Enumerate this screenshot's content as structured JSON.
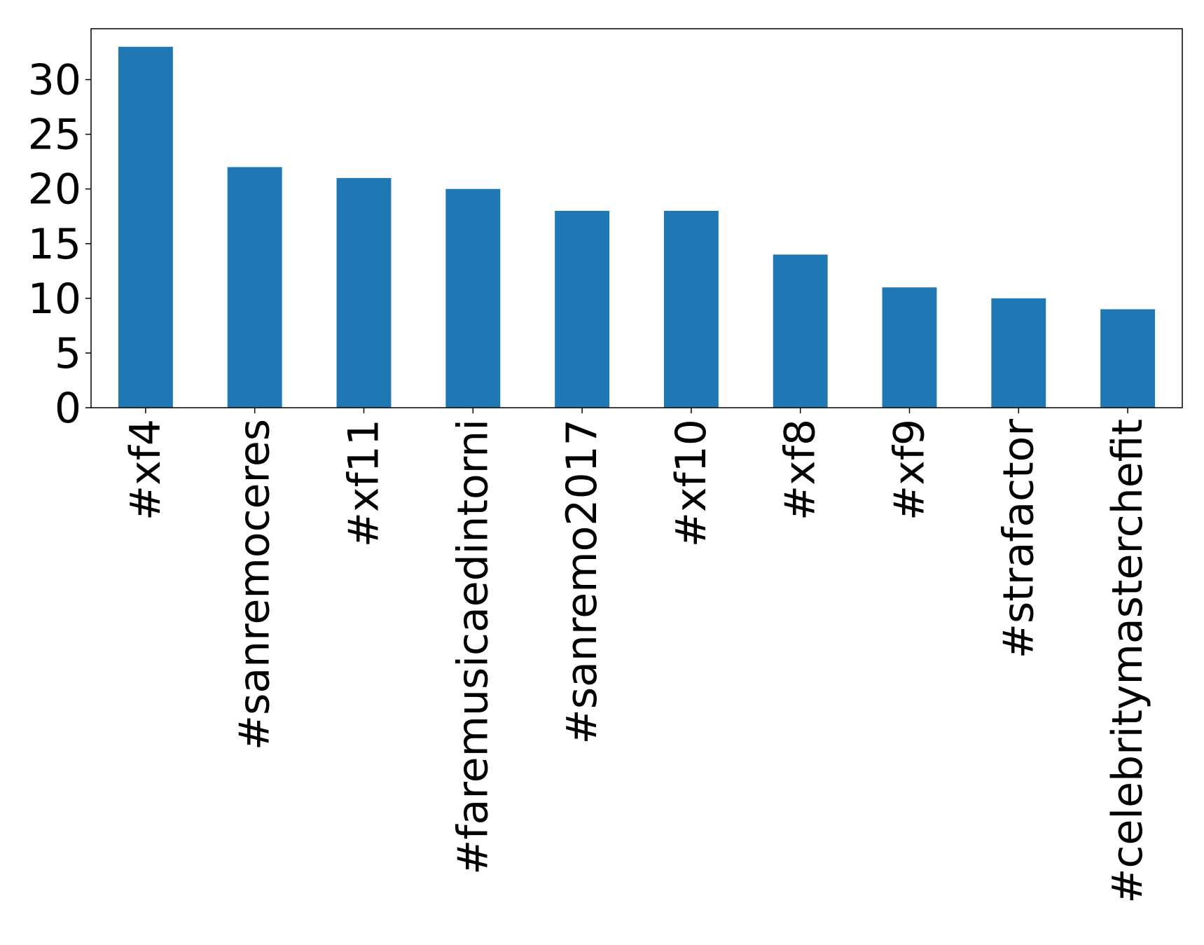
{
  "chart_data": {
    "type": "bar",
    "title": "",
    "xlabel": "",
    "ylabel": "",
    "categories": [
      "#xf4",
      "#sanremoceres",
      "#xf11",
      "#faremusicaedintorni",
      "#sanremo2017",
      "#xf10",
      "#xf8",
      "#xf9",
      "#strafactor",
      "#celebritymasterchefit"
    ],
    "values": [
      33,
      22,
      21,
      20,
      18,
      18,
      14,
      11,
      10,
      9
    ],
    "ylim": [
      0,
      34.65
    ],
    "yticks": [
      0,
      5,
      10,
      15,
      20,
      25,
      30
    ],
    "ytick_labels": [
      "0",
      "5",
      "10",
      "15",
      "20",
      "25",
      "30"
    ],
    "bar_color": "#1f77b4",
    "grid": false,
    "legend": "none"
  }
}
